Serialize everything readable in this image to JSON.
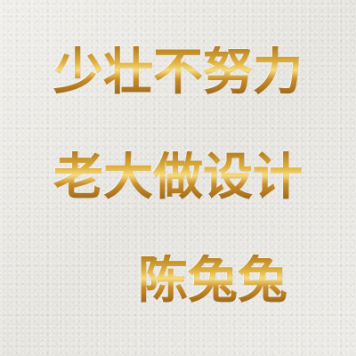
{
  "lines": [
    "少壮不努力",
    "老大做设计",
    "陈兔兔"
  ],
  "colors": {
    "paper": "#ecebe7",
    "gold_light": "#f7dc7a",
    "gold_mid": "#e0b13f",
    "gold_dark": "#8f5c14"
  }
}
